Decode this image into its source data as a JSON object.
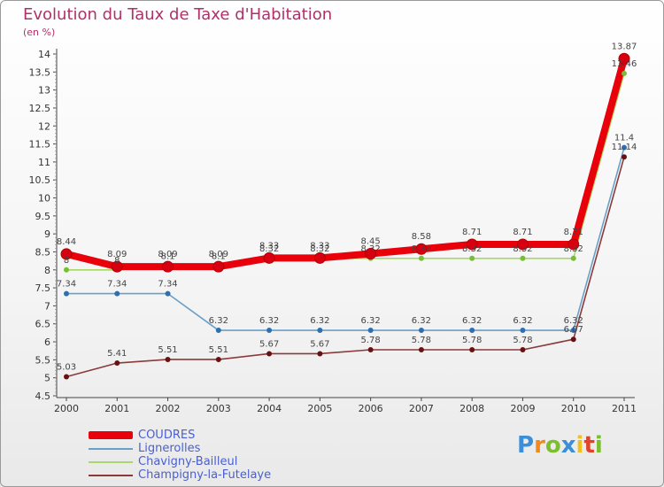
{
  "header": {
    "title": "Evolution du Taux de Taxe d'Habitation",
    "subtitle": "(en %)"
  },
  "logo": {
    "letters": [
      "P",
      "r",
      "o",
      "x",
      "i",
      "t",
      "i"
    ],
    "colors": [
      "#3a8fd8",
      "#f08a1c",
      "#7bbf2e",
      "#3a8fd8",
      "#f0c01c",
      "#e0452a",
      "#7bbf2e"
    ]
  },
  "chart_data": {
    "type": "line",
    "title": "Evolution du Taux de Taxe d'Habitation",
    "ylabel": "(en %)",
    "xlabel": "",
    "x": [
      "2000",
      "2001",
      "2002",
      "2003",
      "2004",
      "2005",
      "2006",
      "2007",
      "2008",
      "2009",
      "2010",
      "2011"
    ],
    "ylim": [
      4.5,
      14
    ],
    "yticks": [
      "4.5",
      "5",
      "5.5",
      "6",
      "6.5",
      "7",
      "7.5",
      "8",
      "8.5",
      "9",
      "9.5",
      "10",
      "10.5",
      "11",
      "11.5",
      "12",
      "12.5",
      "13",
      "13.5",
      "14"
    ],
    "grid": false,
    "legend_position": "bottom-left",
    "series": [
      {
        "name": "COUDRES",
        "color": "#e8000b",
        "marker": "#d80010",
        "values": [
          8.44,
          8.09,
          8.09,
          8.09,
          8.33,
          8.33,
          8.45,
          8.58,
          8.71,
          8.71,
          8.71,
          13.87
        ],
        "labels": [
          "8.44",
          "8.09",
          "8.09",
          "8.09",
          "8.33",
          "8.33",
          "8.45",
          "8.58",
          "8.71",
          "8.71",
          "8.71",
          "13.87"
        ],
        "label_side": "above"
      },
      {
        "name": "Lignerolles",
        "color": "#6a9fc8",
        "marker": "#2e6fb0",
        "values": [
          7.34,
          7.34,
          7.34,
          6.32,
          6.32,
          6.32,
          6.32,
          6.32,
          6.32,
          6.32,
          6.32,
          11.4
        ],
        "labels": [
          "7.34",
          "7.34",
          "7.34",
          "6.32",
          "6.32",
          "6.32",
          "6.32",
          "6.32",
          "6.32",
          "6.32",
          "6.32",
          "11.4"
        ],
        "label_side": "above"
      },
      {
        "name": "Chavigny-Bailleul",
        "color": "#a8d86a",
        "marker": "#74c032",
        "values": [
          8,
          8,
          8.1,
          8.1,
          8.32,
          8.32,
          8.32,
          8.32,
          8.32,
          8.32,
          8.32,
          13.46
        ],
        "labels": [
          "8",
          "8",
          "8.1",
          "8.1",
          "8.32",
          "8.32",
          "8.32",
          "8.32",
          "8.32",
          "8.32",
          "8.32",
          "13.46"
        ],
        "label_side": "above"
      },
      {
        "name": "Champigny-la-Futelaye",
        "color": "#8a3a3a",
        "marker": "#6a1010",
        "values": [
          5.03,
          5.41,
          5.51,
          5.51,
          5.67,
          5.67,
          5.78,
          5.78,
          5.78,
          5.78,
          6.07,
          11.14
        ],
        "labels": [
          "5.03",
          "5.41",
          "5.51",
          "5.51",
          "5.67",
          "5.67",
          "5.78",
          "5.78",
          "5.78",
          "5.78",
          "6.07",
          "11.14"
        ],
        "label_side": "above"
      }
    ]
  }
}
